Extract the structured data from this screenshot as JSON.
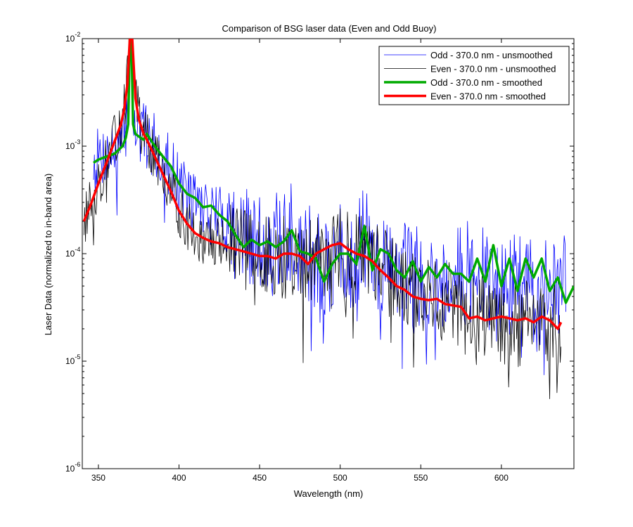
{
  "chart_data": {
    "type": "line",
    "title": "Comparison of BSG laser data (Even and Odd Buoy)",
    "xlabel": "Wavelength (nm)",
    "ylabel": "Laser Data (normalized to in-band area)",
    "xlim": [
      340,
      645
    ],
    "ylim": [
      1e-06,
      0.01
    ],
    "yscale": "log",
    "xticks": [
      350,
      400,
      450,
      500,
      550,
      600
    ],
    "yticks": [
      {
        "value": 1e-06,
        "base": "10",
        "exp": "-6"
      },
      {
        "value": 1e-05,
        "base": "10",
        "exp": "-5"
      },
      {
        "value": 0.0001,
        "base": "10",
        "exp": "-4"
      },
      {
        "value": 0.001,
        "base": "10",
        "exp": "-3"
      },
      {
        "value": 0.01,
        "base": "10",
        "exp": "-2"
      }
    ],
    "grid": false,
    "legend_position": "top-right",
    "series": [
      {
        "name": "Odd - 370.0 nm - unsmoothed",
        "color": "#0000ff",
        "width": 0.8,
        "noisy": true,
        "noise_seed": 7,
        "noise_amp": 0.55,
        "x": [
          347,
          352,
          356,
          360,
          364,
          367,
          368.5,
          369.5,
          370,
          370.5,
          371.5,
          373,
          376,
          380,
          385,
          390,
          395,
          400,
          405,
          410,
          415,
          420,
          425,
          430,
          440,
          445,
          450,
          455,
          460,
          465,
          470,
          475,
          480,
          485,
          490,
          495,
          500,
          505,
          510,
          515,
          520,
          525,
          530,
          535,
          540,
          545,
          550,
          555,
          560,
          565,
          570,
          575,
          580,
          585,
          590,
          595,
          600,
          605,
          610,
          615,
          620,
          625,
          630,
          635,
          640
        ],
        "y": [
          0.0007,
          0.0008,
          0.00085,
          0.0009,
          0.001,
          0.0015,
          0.003,
          0.01,
          0.01,
          0.01,
          0.0022,
          0.0014,
          0.0013,
          0.0012,
          0.001,
          0.0008,
          0.00065,
          0.00045,
          0.00035,
          0.00032,
          0.00028,
          0.00026,
          0.00022,
          0.0002,
          0.00014,
          0.00012,
          0.00012,
          0.00013,
          0.00012,
          0.00013,
          0.00015,
          0.00011,
          0.0001,
          9e-05,
          6e-05,
          8e-05,
          0.0001,
          9e-05,
          9e-05,
          0.00014,
          0.0001,
          8e-05,
          7e-05,
          6e-05,
          7e-05,
          6.5e-05,
          6.5e-05,
          5.5e-05,
          6e-05,
          5e-05,
          7e-05,
          6e-05,
          7e-05,
          4.5e-05,
          6.5e-05,
          5e-05,
          4e-05,
          4.5e-05,
          6e-05,
          5.5e-05,
          4e-05,
          5.5e-05,
          4.5e-05,
          4e-05,
          6e-05
        ]
      },
      {
        "name": "Even - 370.0 nm - unsmoothed",
        "color": "#000000",
        "width": 0.8,
        "noisy": true,
        "noise_seed": 13,
        "noise_amp": 0.45,
        "x": [
          341,
          345,
          350,
          355,
          360,
          364,
          366,
          368,
          369.5,
          370,
          371,
          373,
          375,
          380,
          385,
          390,
          395,
          400,
          405,
          410,
          415,
          420,
          430,
          440,
          450,
          460,
          470,
          480,
          490,
          500,
          510,
          520,
          530,
          540,
          550,
          560,
          570,
          580,
          590,
          600,
          610,
          620,
          630,
          637
        ],
        "y": [
          0.0002,
          0.00028,
          0.00045,
          0.0007,
          0.0011,
          0.0017,
          0.0023,
          0.004,
          0.01,
          0.01,
          0.01,
          0.003,
          0.0019,
          0.0012,
          0.0008,
          0.00055,
          0.00038,
          0.00026,
          0.00019,
          0.00016,
          0.00014,
          0.00013,
          0.00012,
          0.00011,
          0.0001,
          9.5e-05,
          8.5e-05,
          9e-05,
          0.0001,
          0.00011,
          0.0001,
          8e-05,
          6.5e-05,
          5e-05,
          4.2e-05,
          3.8e-05,
          3.2e-05,
          2.4e-05,
          2.6e-05,
          2.3e-05,
          2.2e-05,
          2.5e-05,
          2e-05,
          2.3e-05
        ]
      },
      {
        "name": "Odd - 370.0 nm - smoothed",
        "color": "#00aa00",
        "width": 3.5,
        "noisy": false,
        "x": [
          347,
          350,
          355,
          360,
          365,
          367,
          368.5,
          369.5,
          370,
          370.5,
          371.5,
          373,
          376,
          378,
          380,
          385,
          390,
          395,
          400,
          405,
          410,
          415,
          420,
          425,
          430,
          435,
          440,
          445,
          450,
          455,
          460,
          465,
          470,
          475,
          480,
          485,
          490,
          495,
          500,
          505,
          510,
          515,
          520,
          525,
          530,
          535,
          540,
          545,
          550,
          555,
          560,
          565,
          570,
          575,
          580,
          585,
          590,
          595,
          600,
          605,
          610,
          615,
          620,
          625,
          630,
          635,
          640,
          645
        ],
        "y": [
          0.0007,
          0.00075,
          0.0008,
          0.00085,
          0.001,
          0.0012,
          0.0016,
          0.01,
          0.01,
          0.01,
          0.0016,
          0.0013,
          0.0012,
          0.00115,
          0.0013,
          0.001,
          0.0008,
          0.00065,
          0.00045,
          0.00036,
          0.00033,
          0.00027,
          0.00028,
          0.00023,
          0.0002,
          0.00015,
          0.000115,
          0.000135,
          0.00012,
          0.00013,
          0.000115,
          0.00013,
          0.000165,
          0.000105,
          0.0001,
          9e-05,
          5.5e-05,
          8e-05,
          0.0001,
          0.0001,
          8e-05,
          0.00018,
          7e-05,
          0.00011,
          0.0001,
          7e-05,
          6e-05,
          8.5e-05,
          5.5e-05,
          7.5e-05,
          6e-05,
          8e-05,
          6.5e-05,
          6.5e-05,
          5.5e-05,
          9e-05,
          5.5e-05,
          0.00012,
          5e-05,
          9e-05,
          4.5e-05,
          9e-05,
          6e-05,
          9e-05,
          4.5e-05,
          6e-05,
          3.5e-05,
          5e-05
        ]
      },
      {
        "name": "Even - 370.0 nm - smoothed",
        "color": "#ff0000",
        "width": 3.5,
        "noisy": false,
        "x": [
          341,
          345,
          350,
          355,
          360,
          364,
          366,
          368,
          369.5,
          370,
          371,
          373,
          375,
          378,
          380,
          385,
          390,
          395,
          400,
          405,
          410,
          415,
          420,
          425,
          430,
          435,
          440,
          445,
          450,
          455,
          460,
          465,
          470,
          475,
          480,
          485,
          490,
          495,
          500,
          505,
          510,
          515,
          520,
          525,
          530,
          535,
          540,
          545,
          550,
          555,
          560,
          565,
          570,
          575,
          580,
          585,
          590,
          595,
          600,
          605,
          610,
          615,
          620,
          625,
          630,
          635,
          637
        ],
        "y": [
          0.0002,
          0.00028,
          0.00045,
          0.0007,
          0.0011,
          0.0016,
          0.0022,
          0.0038,
          0.01,
          0.01,
          0.01,
          0.0028,
          0.0018,
          0.0013,
          0.00115,
          0.0008,
          0.00055,
          0.00038,
          0.00025,
          0.00019,
          0.000155,
          0.00014,
          0.00013,
          0.000125,
          0.000115,
          0.00011,
          0.000105,
          0.0001,
          9.5e-05,
          9.5e-05,
          9e-05,
          0.0001,
          0.0001,
          9.5e-05,
          8e-05,
          0.0001,
          0.00011,
          0.00012,
          0.000125,
          0.00011,
          0.0001,
          9.5e-05,
          8.5e-05,
          7e-05,
          6e-05,
          5e-05,
          4.6e-05,
          4e-05,
          3.8e-05,
          3.7e-05,
          3.8e-05,
          3.4e-05,
          3.3e-05,
          3.2e-05,
          2.5e-05,
          2.6e-05,
          2.4e-05,
          2.5e-05,
          2.6e-05,
          2.5e-05,
          2.4e-05,
          2.5e-05,
          2.3e-05,
          2.6e-05,
          2.4e-05,
          2e-05,
          2.3e-05
        ]
      }
    ]
  }
}
